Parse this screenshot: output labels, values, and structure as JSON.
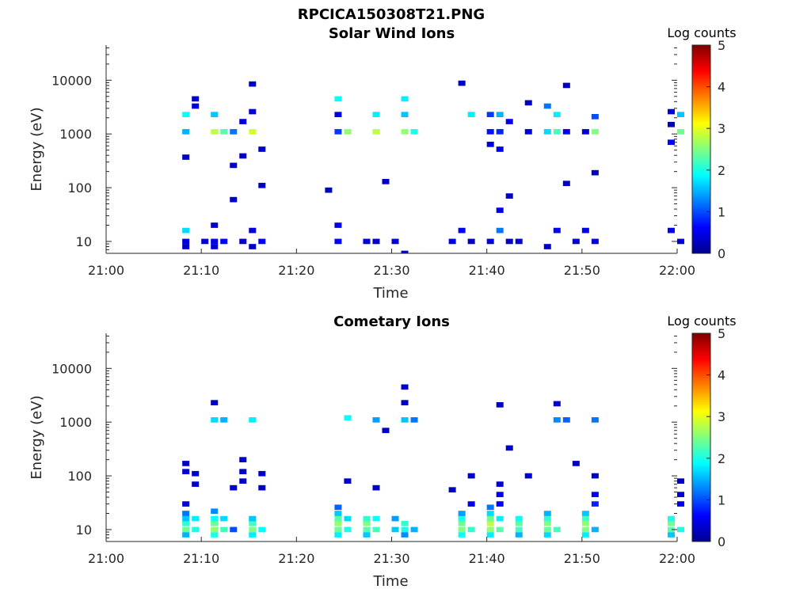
{
  "figure": {
    "title": "RPCICA150308T21.PNG"
  },
  "colorscale": {
    "label": "Log counts",
    "ticks": [
      "0",
      "1",
      "2",
      "3",
      "4",
      "5"
    ],
    "range": [
      0,
      5
    ],
    "stops": [
      "#00008f",
      "#0000ff",
      "#0080ff",
      "#00ffff",
      "#80ff80",
      "#ffff00",
      "#ff8000",
      "#ff0000",
      "#800000"
    ]
  },
  "chart_data": [
    {
      "type": "heatmap",
      "title": "Solar Wind Ions",
      "xlabel": "Time",
      "ylabel": "Energy (eV)",
      "y_scale": "log",
      "xlim": [
        "21:00",
        "22:00"
      ],
      "ylim": [
        6,
        45000
      ],
      "x_ticks": [
        "21:00",
        "21:10",
        "21:20",
        "21:30",
        "21:40",
        "21:50",
        "22:00"
      ],
      "y_ticks": [
        "10",
        "100",
        "1000",
        "10000"
      ],
      "cells": [
        {
          "t": "21:08",
          "e": 8,
          "v": 0.3
        },
        {
          "t": "21:08",
          "e": 10,
          "v": 0.4
        },
        {
          "t": "21:08",
          "e": 16,
          "v": 1.7
        },
        {
          "t": "21:08",
          "e": 1100,
          "v": 1.5
        },
        {
          "t": "21:08",
          "e": 2300,
          "v": 1.9
        },
        {
          "t": "21:08",
          "e": 370,
          "v": 0.3
        },
        {
          "t": "21:09",
          "e": 3300,
          "v": 0.4
        },
        {
          "t": "21:09",
          "e": 4500,
          "v": 0.3
        },
        {
          "t": "21:10",
          "e": 10,
          "v": 0.4
        },
        {
          "t": "21:11",
          "e": 8,
          "v": 0.4
        },
        {
          "t": "21:11",
          "e": 10,
          "v": 0.5
        },
        {
          "t": "21:11",
          "e": 20,
          "v": 0.3
        },
        {
          "t": "21:11",
          "e": 1100,
          "v": 2.8
        },
        {
          "t": "21:11",
          "e": 2300,
          "v": 1.6
        },
        {
          "t": "21:12",
          "e": 1100,
          "v": 2.3
        },
        {
          "t": "21:12",
          "e": 10,
          "v": 0.6
        },
        {
          "t": "21:13",
          "e": 1100,
          "v": 1.2
        },
        {
          "t": "21:13",
          "e": 260,
          "v": 0.3
        },
        {
          "t": "21:13",
          "e": 60,
          "v": 0.3
        },
        {
          "t": "21:14",
          "e": 10,
          "v": 0.3
        },
        {
          "t": "21:14",
          "e": 1700,
          "v": 0.4
        },
        {
          "t": "21:14",
          "e": 390,
          "v": 0.3
        },
        {
          "t": "21:15",
          "e": 8,
          "v": 0.3
        },
        {
          "t": "21:15",
          "e": 16,
          "v": 0.4
        },
        {
          "t": "21:15",
          "e": 1100,
          "v": 2.9
        },
        {
          "t": "21:15",
          "e": 2600,
          "v": 0.4
        },
        {
          "t": "21:15",
          "e": 8500,
          "v": 0.3
        },
        {
          "t": "21:16",
          "e": 10,
          "v": 0.5
        },
        {
          "t": "21:16",
          "e": 520,
          "v": 0.3
        },
        {
          "t": "21:16",
          "e": 110,
          "v": 0.3
        },
        {
          "t": "21:23",
          "e": 90,
          "v": 0.3
        },
        {
          "t": "21:24",
          "e": 10,
          "v": 0.6
        },
        {
          "t": "21:24",
          "e": 20,
          "v": 0.5
        },
        {
          "t": "21:24",
          "e": 1100,
          "v": 0.9
        },
        {
          "t": "21:24",
          "e": 2300,
          "v": 0.5
        },
        {
          "t": "21:24",
          "e": 4500,
          "v": 1.9
        },
        {
          "t": "21:25",
          "e": 1100,
          "v": 2.6
        },
        {
          "t": "21:27",
          "e": 10,
          "v": 0.4
        },
        {
          "t": "21:28",
          "e": 10,
          "v": 0.3
        },
        {
          "t": "21:28",
          "e": 1100,
          "v": 2.8
        },
        {
          "t": "21:28",
          "e": 2300,
          "v": 1.8
        },
        {
          "t": "21:29",
          "e": 130,
          "v": 0.3
        },
        {
          "t": "21:30",
          "e": 10,
          "v": 0.4
        },
        {
          "t": "21:31",
          "e": 1100,
          "v": 2.6
        },
        {
          "t": "21:31",
          "e": 2300,
          "v": 1.6
        },
        {
          "t": "21:31",
          "e": 4500,
          "v": 1.8
        },
        {
          "t": "21:31",
          "e": 6,
          "v": 0.4
        },
        {
          "t": "21:32",
          "e": 1100,
          "v": 2.0
        },
        {
          "t": "21:36",
          "e": 10,
          "v": 0.5
        },
        {
          "t": "21:37",
          "e": 16,
          "v": 0.6
        },
        {
          "t": "21:37",
          "e": 8800,
          "v": 0.3
        },
        {
          "t": "21:38",
          "e": 2300,
          "v": 1.8
        },
        {
          "t": "21:38",
          "e": 10,
          "v": 0.3
        },
        {
          "t": "21:40",
          "e": 10,
          "v": 0.4
        },
        {
          "t": "21:40",
          "e": 1100,
          "v": 0.7
        },
        {
          "t": "21:40",
          "e": 2300,
          "v": 0.9
        },
        {
          "t": "21:40",
          "e": 640,
          "v": 0.4
        },
        {
          "t": "21:41",
          "e": 16,
          "v": 1.2
        },
        {
          "t": "21:41",
          "e": 38,
          "v": 0.5
        },
        {
          "t": "21:41",
          "e": 1100,
          "v": 0.8
        },
        {
          "t": "21:41",
          "e": 2300,
          "v": 1.5
        },
        {
          "t": "21:41",
          "e": 520,
          "v": 0.5
        },
        {
          "t": "21:42",
          "e": 10,
          "v": 0.3
        },
        {
          "t": "21:42",
          "e": 1700,
          "v": 0.5
        },
        {
          "t": "21:42",
          "e": 70,
          "v": 0.3
        },
        {
          "t": "21:43",
          "e": 10,
          "v": 0.4
        },
        {
          "t": "21:44",
          "e": 3800,
          "v": 0.3
        },
        {
          "t": "21:44",
          "e": 1100,
          "v": 0.4
        },
        {
          "t": "21:46",
          "e": 8,
          "v": 0.3
        },
        {
          "t": "21:46",
          "e": 1100,
          "v": 1.7
        },
        {
          "t": "21:46",
          "e": 3300,
          "v": 1.2
        },
        {
          "t": "21:47",
          "e": 16,
          "v": 0.6
        },
        {
          "t": "21:47",
          "e": 1100,
          "v": 2.2
        },
        {
          "t": "21:47",
          "e": 2300,
          "v": 1.8
        },
        {
          "t": "21:48",
          "e": 8000,
          "v": 0.3
        },
        {
          "t": "21:48",
          "e": 1100,
          "v": 0.5
        },
        {
          "t": "21:48",
          "e": 120,
          "v": 0.3
        },
        {
          "t": "21:49",
          "e": 10,
          "v": 0.4
        },
        {
          "t": "21:50",
          "e": 16,
          "v": 0.5
        },
        {
          "t": "21:50",
          "e": 1100,
          "v": 0.4
        },
        {
          "t": "21:51",
          "e": 10,
          "v": 0.5
        },
        {
          "t": "21:51",
          "e": 1100,
          "v": 2.5
        },
        {
          "t": "21:51",
          "e": 2100,
          "v": 1.0
        },
        {
          "t": "21:51",
          "e": 190,
          "v": 0.3
        },
        {
          "t": "21:59",
          "e": 16,
          "v": 0.5
        },
        {
          "t": "21:59",
          "e": 700,
          "v": 0.6
        },
        {
          "t": "21:59",
          "e": 2600,
          "v": 0.4
        },
        {
          "t": "21:59",
          "e": 1500,
          "v": 0.3
        },
        {
          "t": "22:00",
          "e": 10,
          "v": 0.4
        },
        {
          "t": "22:00",
          "e": 2300,
          "v": 1.6
        },
        {
          "t": "22:00",
          "e": 1100,
          "v": 2.4
        }
      ]
    },
    {
      "type": "heatmap",
      "title": "Cometary Ions",
      "xlabel": "Time",
      "ylabel": "Energy (eV)",
      "y_scale": "log",
      "xlim": [
        "21:00",
        "22:00"
      ],
      "ylim": [
        6,
        45000
      ],
      "x_ticks": [
        "21:00",
        "21:10",
        "21:20",
        "21:30",
        "21:40",
        "21:50",
        "22:00"
      ],
      "y_ticks": [
        "10",
        "100",
        "1000",
        "10000"
      ],
      "cells": [
        {
          "t": "21:08",
          "e": 8,
          "v": 1.5
        },
        {
          "t": "21:08",
          "e": 10,
          "v": 2.4
        },
        {
          "t": "21:08",
          "e": 13,
          "v": 2.1
        },
        {
          "t": "21:08",
          "e": 16,
          "v": 1.6
        },
        {
          "t": "21:08",
          "e": 20,
          "v": 1.2
        },
        {
          "t": "21:08",
          "e": 30,
          "v": 0.4
        },
        {
          "t": "21:08",
          "e": 120,
          "v": 0.4
        },
        {
          "t": "21:08",
          "e": 170,
          "v": 0.3
        },
        {
          "t": "21:09",
          "e": 10,
          "v": 2.0
        },
        {
          "t": "21:09",
          "e": 16,
          "v": 1.8
        },
        {
          "t": "21:09",
          "e": 70,
          "v": 0.3
        },
        {
          "t": "21:09",
          "e": 110,
          "v": 0.3
        },
        {
          "t": "21:11",
          "e": 8,
          "v": 2.0
        },
        {
          "t": "21:11",
          "e": 10,
          "v": 2.6
        },
        {
          "t": "21:11",
          "e": 13,
          "v": 2.4
        },
        {
          "t": "21:11",
          "e": 16,
          "v": 1.9
        },
        {
          "t": "21:11",
          "e": 22,
          "v": 1.3
        },
        {
          "t": "21:11",
          "e": 1100,
          "v": 1.7
        },
        {
          "t": "21:11",
          "e": 2300,
          "v": 0.3
        },
        {
          "t": "21:12",
          "e": 10,
          "v": 2.2
        },
        {
          "t": "21:12",
          "e": 16,
          "v": 1.7
        },
        {
          "t": "21:12",
          "e": 1100,
          "v": 1.5
        },
        {
          "t": "21:13",
          "e": 10,
          "v": 1.0
        },
        {
          "t": "21:13",
          "e": 60,
          "v": 0.3
        },
        {
          "t": "21:14",
          "e": 200,
          "v": 0.3
        },
        {
          "t": "21:14",
          "e": 120,
          "v": 0.3
        },
        {
          "t": "21:14",
          "e": 80,
          "v": 0.3
        },
        {
          "t": "21:15",
          "e": 8,
          "v": 1.8
        },
        {
          "t": "21:15",
          "e": 10,
          "v": 2.5
        },
        {
          "t": "21:15",
          "e": 13,
          "v": 2.2
        },
        {
          "t": "21:15",
          "e": 16,
          "v": 1.6
        },
        {
          "t": "21:15",
          "e": 1100,
          "v": 1.8
        },
        {
          "t": "21:16",
          "e": 10,
          "v": 1.9
        },
        {
          "t": "21:16",
          "e": 60,
          "v": 0.3
        },
        {
          "t": "21:16",
          "e": 110,
          "v": 0.3
        },
        {
          "t": "21:24",
          "e": 8,
          "v": 1.8
        },
        {
          "t": "21:24",
          "e": 10,
          "v": 2.4
        },
        {
          "t": "21:24",
          "e": 13,
          "v": 2.6
        },
        {
          "t": "21:24",
          "e": 16,
          "v": 2.3
        },
        {
          "t": "21:24",
          "e": 20,
          "v": 1.6
        },
        {
          "t": "21:24",
          "e": 26,
          "v": 1.1
        },
        {
          "t": "21:25",
          "e": 10,
          "v": 2.0
        },
        {
          "t": "21:25",
          "e": 16,
          "v": 1.7
        },
        {
          "t": "21:25",
          "e": 80,
          "v": 0.3
        },
        {
          "t": "21:25",
          "e": 1200,
          "v": 1.9
        },
        {
          "t": "21:27",
          "e": 8,
          "v": 1.6
        },
        {
          "t": "21:27",
          "e": 10,
          "v": 2.3
        },
        {
          "t": "21:27",
          "e": 13,
          "v": 2.5
        },
        {
          "t": "21:27",
          "e": 16,
          "v": 2.1
        },
        {
          "t": "21:28",
          "e": 10,
          "v": 2.2
        },
        {
          "t": "21:28",
          "e": 16,
          "v": 1.9
        },
        {
          "t": "21:28",
          "e": 1100,
          "v": 1.4
        },
        {
          "t": "21:28",
          "e": 60,
          "v": 0.3
        },
        {
          "t": "21:29",
          "e": 700,
          "v": 0.3
        },
        {
          "t": "21:30",
          "e": 10,
          "v": 1.6
        },
        {
          "t": "21:30",
          "e": 16,
          "v": 1.4
        },
        {
          "t": "21:31",
          "e": 8,
          "v": 1.3
        },
        {
          "t": "21:31",
          "e": 10,
          "v": 2.0
        },
        {
          "t": "21:31",
          "e": 13,
          "v": 2.1
        },
        {
          "t": "21:31",
          "e": 1100,
          "v": 1.6
        },
        {
          "t": "21:31",
          "e": 4500,
          "v": 0.3
        },
        {
          "t": "21:31",
          "e": 2300,
          "v": 0.3
        },
        {
          "t": "21:32",
          "e": 10,
          "v": 1.5
        },
        {
          "t": "21:32",
          "e": 1100,
          "v": 1.2
        },
        {
          "t": "21:36",
          "e": 55,
          "v": 0.3
        },
        {
          "t": "21:37",
          "e": 8,
          "v": 1.9
        },
        {
          "t": "21:37",
          "e": 10,
          "v": 2.5
        },
        {
          "t": "21:37",
          "e": 13,
          "v": 2.4
        },
        {
          "t": "21:37",
          "e": 16,
          "v": 2.0
        },
        {
          "t": "21:37",
          "e": 20,
          "v": 1.4
        },
        {
          "t": "21:38",
          "e": 10,
          "v": 2.1
        },
        {
          "t": "21:38",
          "e": 30,
          "v": 0.5
        },
        {
          "t": "21:38",
          "e": 100,
          "v": 0.3
        },
        {
          "t": "21:40",
          "e": 8,
          "v": 1.8
        },
        {
          "t": "21:40",
          "e": 10,
          "v": 2.6
        },
        {
          "t": "21:40",
          "e": 13,
          "v": 2.8
        },
        {
          "t": "21:40",
          "e": 16,
          "v": 2.4
        },
        {
          "t": "21:40",
          "e": 20,
          "v": 1.7
        },
        {
          "t": "21:40",
          "e": 26,
          "v": 1.2
        },
        {
          "t": "21:41",
          "e": 10,
          "v": 2.3
        },
        {
          "t": "21:41",
          "e": 16,
          "v": 1.8
        },
        {
          "t": "21:41",
          "e": 30,
          "v": 0.6
        },
        {
          "t": "21:41",
          "e": 45,
          "v": 0.5
        },
        {
          "t": "21:41",
          "e": 70,
          "v": 0.4
        },
        {
          "t": "21:41",
          "e": 2100,
          "v": 0.3
        },
        {
          "t": "21:42",
          "e": 330,
          "v": 0.3
        },
        {
          "t": "21:43",
          "e": 8,
          "v": 1.5
        },
        {
          "t": "21:43",
          "e": 10,
          "v": 2.2
        },
        {
          "t": "21:43",
          "e": 13,
          "v": 2.3
        },
        {
          "t": "21:43",
          "e": 16,
          "v": 1.9
        },
        {
          "t": "21:44",
          "e": 100,
          "v": 0.3
        },
        {
          "t": "21:46",
          "e": 8,
          "v": 1.7
        },
        {
          "t": "21:46",
          "e": 10,
          "v": 2.4
        },
        {
          "t": "21:46",
          "e": 13,
          "v": 2.5
        },
        {
          "t": "21:46",
          "e": 16,
          "v": 2.1
        },
        {
          "t": "21:46",
          "e": 20,
          "v": 1.5
        },
        {
          "t": "21:47",
          "e": 10,
          "v": 2.2
        },
        {
          "t": "21:47",
          "e": 1100,
          "v": 1.3
        },
        {
          "t": "21:47",
          "e": 2200,
          "v": 0.4
        },
        {
          "t": "21:48",
          "e": 1100,
          "v": 1.1
        },
        {
          "t": "21:49",
          "e": 170,
          "v": 0.3
        },
        {
          "t": "21:50",
          "e": 8,
          "v": 1.8
        },
        {
          "t": "21:50",
          "e": 10,
          "v": 2.5
        },
        {
          "t": "21:50",
          "e": 13,
          "v": 2.6
        },
        {
          "t": "21:50",
          "e": 16,
          "v": 2.2
        },
        {
          "t": "21:50",
          "e": 20,
          "v": 1.6
        },
        {
          "t": "21:51",
          "e": 10,
          "v": 1.5
        },
        {
          "t": "21:51",
          "e": 30,
          "v": 0.8
        },
        {
          "t": "21:51",
          "e": 45,
          "v": 0.6
        },
        {
          "t": "21:51",
          "e": 1100,
          "v": 1.2
        },
        {
          "t": "21:51",
          "e": 100,
          "v": 0.3
        },
        {
          "t": "21:59",
          "e": 8,
          "v": 1.6
        },
        {
          "t": "21:59",
          "e": 10,
          "v": 2.3
        },
        {
          "t": "21:59",
          "e": 13,
          "v": 2.4
        },
        {
          "t": "21:59",
          "e": 16,
          "v": 2.0
        },
        {
          "t": "22:00",
          "e": 10,
          "v": 2.0
        },
        {
          "t": "22:00",
          "e": 30,
          "v": 0.5
        },
        {
          "t": "22:00",
          "e": 45,
          "v": 0.4
        },
        {
          "t": "22:00",
          "e": 80,
          "v": 0.3
        }
      ]
    }
  ]
}
